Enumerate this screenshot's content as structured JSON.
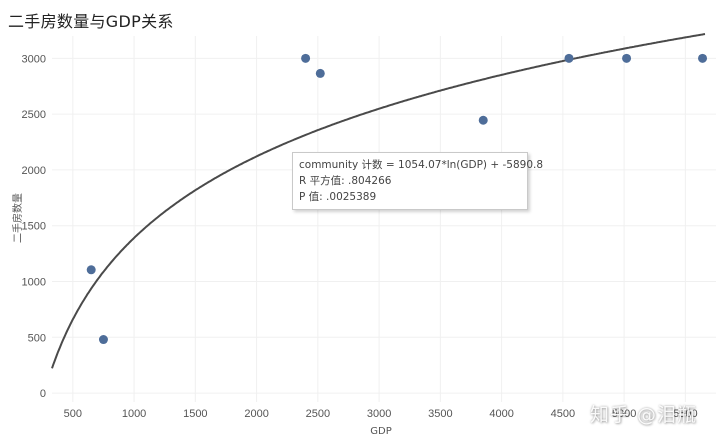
{
  "chart_data": {
    "type": "scatter",
    "title": "二手房数量与GDP关系",
    "xlabel": "GDP",
    "ylabel": "二手房数量",
    "x_ticks": [
      500,
      1000,
      1500,
      2000,
      2500,
      3000,
      3500,
      4000,
      4500,
      5000,
      5500
    ],
    "y_ticks": [
      0,
      500,
      1000,
      1500,
      2000,
      2500,
      3000
    ],
    "xlim": [
      330,
      5750
    ],
    "ylim": [
      -80,
      3200
    ],
    "grid": true,
    "series": [
      {
        "points": [
          {
            "x": 650,
            "y": 1105
          },
          {
            "x": 750,
            "y": 480
          },
          {
            "x": 2400,
            "y": 3000
          },
          {
            "x": 2520,
            "y": 2865
          },
          {
            "x": 3850,
            "y": 2445
          },
          {
            "x": 4550,
            "y": 3000
          },
          {
            "x": 5020,
            "y": 3000
          },
          {
            "x": 5640,
            "y": 3000
          }
        ],
        "color": "#4e6d99"
      }
    ],
    "trend_line": {
      "model": "logarithmic",
      "a": 1054.07,
      "b": -5890.8,
      "color": "#4a4a4a"
    },
    "tooltip": {
      "equation": "community 计数 = 1054.07*ln(GDP) + -5890.8",
      "r_squared": "R 平方值: .804266",
      "p_value": "P 值: .0025389"
    }
  },
  "watermark": "知乎 @泪瓶"
}
